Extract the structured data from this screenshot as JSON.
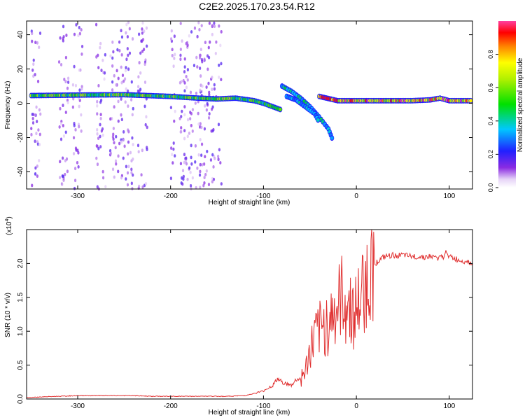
{
  "title": "C2E2.2025.170.23.54.R12",
  "colors": {
    "snr_line": "#e03030",
    "background": "#ffffff",
    "axis": "#000000"
  },
  "chart_data": [
    {
      "type": "heatmap",
      "xlabel": "Height of straight line (km)",
      "ylabel": "Frequency (Hz)",
      "xlim": [
        -355,
        125
      ],
      "ylim": [
        -50,
        48
      ],
      "xticks": [
        -300,
        -200,
        -100,
        0,
        100
      ],
      "xtick_labels": [
        "-300",
        "-200",
        "-100",
        "0",
        "100"
      ],
      "yticks": [
        -40,
        -20,
        0,
        20,
        40
      ],
      "ytick_labels": [
        "-40",
        "-20",
        "0",
        "20",
        "40"
      ],
      "colorbar": {
        "label": "Normalized spectral amplitude",
        "range": [
          0,
          1
        ],
        "ticks": [
          0.0,
          0.2,
          0.4,
          0.6,
          0.8
        ],
        "tick_labels": [
          "0.0",
          "0.2",
          "0.4",
          "0.6",
          "0.8"
        ],
        "colormap": "rainbow"
      },
      "traces": [
        {
          "points": [
            [
              -350,
              4.5
            ],
            [
              -300,
              4.8
            ],
            [
              -250,
              5
            ],
            [
              -200,
              4
            ],
            [
              -170,
              3
            ],
            [
              -150,
              2.5
            ],
            [
              -130,
              3
            ],
            [
              -110,
              1.5
            ],
            [
              -100,
              0
            ],
            [
              -90,
              -2
            ],
            [
              -80,
              -4
            ]
          ],
          "amplitude": 0.55
        },
        {
          "points": [
            [
              -80,
              10
            ],
            [
              -70,
              7
            ],
            [
              -60,
              3
            ],
            [
              -50,
              -2
            ],
            [
              -40,
              -8
            ],
            [
              -30,
              -15
            ],
            [
              -25,
              -22
            ]
          ],
          "amplitude": 0.4
        },
        {
          "points": [
            [
              -75,
              4
            ],
            [
              -65,
              2
            ],
            [
              -55,
              -2
            ],
            [
              -45,
              -6
            ],
            [
              -40,
              -11
            ]
          ],
          "amplitude": 0.35
        },
        {
          "points": [
            [
              -40,
              4
            ],
            [
              -20,
              1.5
            ],
            [
              0,
              1.5
            ],
            [
              20,
              1.5
            ],
            [
              40,
              1.5
            ],
            [
              60,
              1.5
            ],
            [
              80,
              2
            ],
            [
              90,
              3
            ],
            [
              100,
              1.5
            ],
            [
              125,
              1.5
            ]
          ],
          "amplitude": 0.85
        }
      ],
      "noise_bands_x": [
        [
          -350,
          -340
        ],
        [
          -320,
          -310
        ],
        [
          -305,
          -295
        ],
        [
          -280,
          -270
        ],
        [
          -265,
          -240
        ],
        [
          -235,
          -225
        ],
        [
          -200,
          -195
        ],
        [
          -190,
          -145
        ]
      ]
    },
    {
      "type": "line",
      "xlabel": "Height of straight line (km)",
      "ylabel": "SNR (10 * v/v)",
      "scale_label": "(x10",
      "scale_exponent": "4",
      "scale_suffix": ")",
      "xlim": [
        -355,
        125
      ],
      "ylim": [
        0,
        2.5
      ],
      "xticks": [
        -300,
        -200,
        -100,
        0,
        100
      ],
      "xtick_labels": [
        "-300",
        "-200",
        "-100",
        "0",
        "100"
      ],
      "yticks": [
        0.0,
        0.5,
        1.0,
        1.5,
        2.0
      ],
      "ytick_labels": [
        "0.0",
        "0.5",
        "1.0",
        "1.5",
        "2.0"
      ],
      "series": [
        {
          "x": [
            -355,
            -340,
            -320,
            -300,
            -280,
            -260,
            -240,
            -220,
            -200,
            -180,
            -160,
            -140,
            -120,
            -110,
            -100,
            -90,
            -85,
            -80,
            -75,
            -70,
            -65,
            -60,
            -55,
            -50,
            -45,
            -40,
            -35,
            -30,
            -25,
            -20,
            -15,
            -10,
            -5,
            0,
            5,
            10,
            15,
            20,
            25,
            30,
            40,
            50,
            60,
            70,
            80,
            90,
            95,
            97,
            100,
            110,
            120,
            125
          ],
          "y": [
            0.02,
            0.03,
            0.04,
            0.05,
            0.05,
            0.05,
            0.05,
            0.04,
            0.04,
            0.04,
            0.04,
            0.04,
            0.05,
            0.08,
            0.12,
            0.2,
            0.3,
            0.25,
            0.22,
            0.2,
            0.28,
            0.3,
            0.4,
            0.7,
            0.9,
            1.0,
            1.05,
            1.15,
            1.25,
            1.35,
            1.5,
            1.4,
            1.3,
            1.3,
            1.5,
            1.7,
            1.9,
            2.0,
            2.05,
            2.1,
            2.12,
            2.12,
            2.1,
            2.1,
            2.1,
            2.08,
            2.1,
            2.2,
            2.1,
            2.05,
            2.03,
            2.0
          ]
        }
      ]
    }
  ]
}
